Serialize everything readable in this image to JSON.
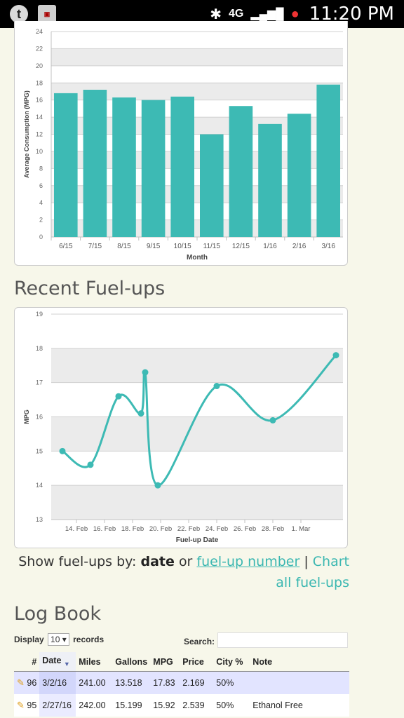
{
  "status_bar": {
    "time": "11:20 PM",
    "network": "4G"
  },
  "monthly_chart": {
    "chart_data": {
      "type": "bar",
      "categories": [
        "6/15",
        "7/15",
        "8/15",
        "9/15",
        "10/15",
        "11/15",
        "12/15",
        "1/16",
        "2/16",
        "3/16"
      ],
      "values": [
        16.8,
        17.2,
        16.3,
        16.0,
        16.4,
        12.0,
        15.3,
        13.2,
        14.4,
        17.8
      ],
      "xlabel": "Month",
      "ylabel": "Average Consumption (MPG)",
      "ylim": [
        0,
        24
      ],
      "yticks": [
        "0",
        "2",
        "4",
        "6",
        "8",
        "10",
        "12",
        "14",
        "16",
        "18",
        "20",
        "22",
        "24"
      ],
      "color": "#3dbab4"
    }
  },
  "recent_title": "Recent Fuel-ups",
  "recent_chart": {
    "chart_data": {
      "type": "line",
      "x": [
        13.0,
        15.0,
        17.0,
        18.6,
        18.9,
        19.8,
        24.0,
        28.0,
        32.5
      ],
      "values": [
        15.0,
        14.6,
        16.6,
        16.1,
        17.3,
        14.0,
        16.9,
        15.9,
        17.8
      ],
      "xlabel": "Fuel-up Date",
      "ylabel": "MPG",
      "ylim": [
        13,
        19
      ],
      "xlim": [
        12.2,
        33.0
      ],
      "xticks": [
        {
          "v": 14,
          "label": "14. Feb"
        },
        {
          "v": 16,
          "label": "16. Feb"
        },
        {
          "v": 18,
          "label": "18. Feb"
        },
        {
          "v": 20,
          "label": "20. Feb"
        },
        {
          "v": 22,
          "label": "22. Feb"
        },
        {
          "v": 24,
          "label": "24. Feb"
        },
        {
          "v": 26,
          "label": "26. Feb"
        },
        {
          "v": 28,
          "label": "28. Feb"
        },
        {
          "v": 30,
          "label": "1. Mar"
        }
      ],
      "yticks": [
        "13",
        "14",
        "15",
        "16",
        "17",
        "18",
        "19"
      ],
      "color": "#3dbab4"
    }
  },
  "show_by": {
    "prefix": "Show fuel-ups by:",
    "date": "date",
    "or": "or",
    "fuelup_number": "fuel-up number",
    "sep": "|",
    "chart_all": "Chart all fuel-ups"
  },
  "logbook": {
    "title": "Log Book",
    "display_label": "Display",
    "display_value": "10",
    "records_label": "records",
    "search_label": "Search:",
    "columns": [
      "#",
      "Date",
      "Miles",
      "Gallons",
      "MPG",
      "Price",
      "City %",
      "Note"
    ],
    "rows": [
      [
        "96",
        "3/2/16",
        "241.00",
        "13.518",
        "17.83",
        "2.169",
        "50%",
        ""
      ],
      [
        "95",
        "2/27/16",
        "242.00",
        "15.199",
        "15.92",
        "2.539",
        "50%",
        "Ethanol Free"
      ]
    ]
  }
}
